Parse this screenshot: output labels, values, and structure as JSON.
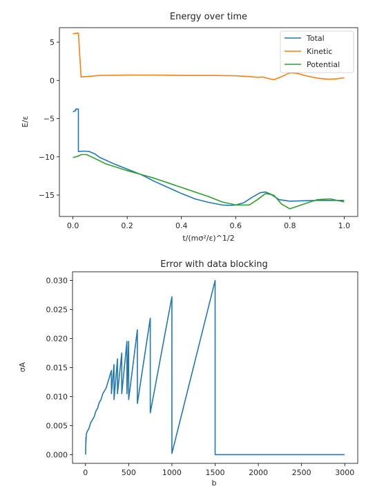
{
  "chart_data": [
    {
      "type": "line",
      "title": "Energy over time",
      "xlabel": "t/(mσ²/ε)^1/2",
      "ylabel": "E/ε",
      "xlim": [
        -0.05,
        1.05
      ],
      "ylim": [
        -17.8,
        6.9
      ],
      "xticks": [
        "0.0",
        "0.2",
        "0.4",
        "0.6",
        "0.8",
        "1.0"
      ],
      "xtick_values": [
        0.0,
        0.2,
        0.4,
        0.6,
        0.8,
        1.0
      ],
      "yticks": [
        "5",
        "0",
        "−5",
        "−10",
        "−15"
      ],
      "ytick_values": [
        5,
        0,
        -5,
        -10,
        -15
      ],
      "legend": "top-right",
      "grid": false,
      "series": [
        {
          "name": "Total",
          "color": "#1f77b4",
          "x": [
            0.0,
            0.01,
            0.01,
            0.02,
            0.02,
            0.04,
            0.06,
            0.08,
            0.1,
            0.15,
            0.2,
            0.25,
            0.3,
            0.35,
            0.4,
            0.45,
            0.5,
            0.55,
            0.58,
            0.6,
            0.63,
            0.66,
            0.69,
            0.71,
            0.73,
            0.76,
            0.8,
            0.85,
            0.9,
            0.95,
            1.0
          ],
          "y": [
            -4.1,
            -3.95,
            -3.75,
            -3.75,
            -9.3,
            -9.25,
            -9.3,
            -9.6,
            -10.1,
            -10.9,
            -11.6,
            -12.3,
            -13.2,
            -14.0,
            -14.8,
            -15.5,
            -15.95,
            -16.3,
            -16.35,
            -16.3,
            -16.0,
            -15.3,
            -14.7,
            -14.6,
            -14.9,
            -15.6,
            -15.8,
            -15.75,
            -15.7,
            -15.7,
            -15.7
          ]
        },
        {
          "name": "Kinetic",
          "color": "#ff7f0e",
          "x": [
            0.0,
            0.02,
            0.02,
            0.03,
            0.1,
            0.2,
            0.3,
            0.4,
            0.5,
            0.6,
            0.65,
            0.68,
            0.7,
            0.72,
            0.74,
            0.77,
            0.8,
            0.83,
            0.86,
            0.9,
            0.94,
            0.97,
            1.0
          ],
          "y": [
            6.1,
            6.2,
            6.2,
            0.45,
            0.65,
            0.7,
            0.7,
            0.65,
            0.65,
            0.6,
            0.5,
            0.4,
            0.45,
            0.25,
            0.1,
            0.5,
            1.0,
            0.9,
            0.6,
            0.3,
            0.15,
            0.2,
            0.35
          ]
        },
        {
          "name": "Potential",
          "color": "#2ca02c",
          "x": [
            0.0,
            0.02,
            0.03,
            0.05,
            0.08,
            0.12,
            0.2,
            0.3,
            0.4,
            0.5,
            0.55,
            0.6,
            0.65,
            0.68,
            0.71,
            0.74,
            0.77,
            0.8,
            0.85,
            0.9,
            0.95,
            1.0
          ],
          "y": [
            -10.1,
            -9.9,
            -9.7,
            -9.7,
            -10.2,
            -10.9,
            -11.8,
            -12.8,
            -14.0,
            -15.2,
            -15.9,
            -16.3,
            -16.3,
            -15.6,
            -14.8,
            -15.0,
            -16.2,
            -16.8,
            -16.2,
            -15.6,
            -15.5,
            -15.9
          ]
        }
      ]
    },
    {
      "type": "line",
      "title": "Error with data blocking",
      "xlabel": "b",
      "ylabel": "σA",
      "xlim": [
        -150,
        3150
      ],
      "ylim": [
        -0.0015,
        0.0315
      ],
      "xticks": [
        "0",
        "500",
        "1000",
        "1500",
        "2000",
        "2500",
        "3000"
      ],
      "xtick_values": [
        0,
        500,
        1000,
        1500,
        2000,
        2500,
        3000
      ],
      "yticks": [
        "0.000",
        "0.005",
        "0.010",
        "0.015",
        "0.020",
        "0.025",
        "0.030"
      ],
      "ytick_values": [
        0.0,
        0.005,
        0.01,
        0.015,
        0.02,
        0.025,
        0.03
      ],
      "legend": "none",
      "grid": false,
      "series": [
        {
          "color": "#1f77b4",
          "x": [
            1,
            5,
            5,
            10,
            20,
            40,
            60,
            80,
            100,
            120,
            140,
            150,
            160,
            180,
            200,
            220,
            240,
            260,
            280,
            300,
            300,
            330,
            330,
            370,
            370,
            420,
            420,
            480,
            480,
            500,
            500,
            600,
            600,
            750,
            750,
            1000,
            1000,
            1500,
            1500,
            2000,
            2500,
            2998
          ],
          "y": [
            0.0,
            0.003,
            0.002,
            0.0035,
            0.004,
            0.0045,
            0.0055,
            0.006,
            0.0065,
            0.0075,
            0.008,
            0.0085,
            0.009,
            0.0095,
            0.0105,
            0.011,
            0.0115,
            0.0125,
            0.0135,
            0.0145,
            0.0105,
            0.0155,
            0.0095,
            0.0165,
            0.0105,
            0.0175,
            0.0105,
            0.0195,
            0.0105,
            0.0195,
            0.0095,
            0.0215,
            0.0088,
            0.0235,
            0.0072,
            0.0272,
            0.0002,
            0.03,
            0.0,
            0.0,
            0.0,
            0.0
          ]
        }
      ]
    }
  ]
}
